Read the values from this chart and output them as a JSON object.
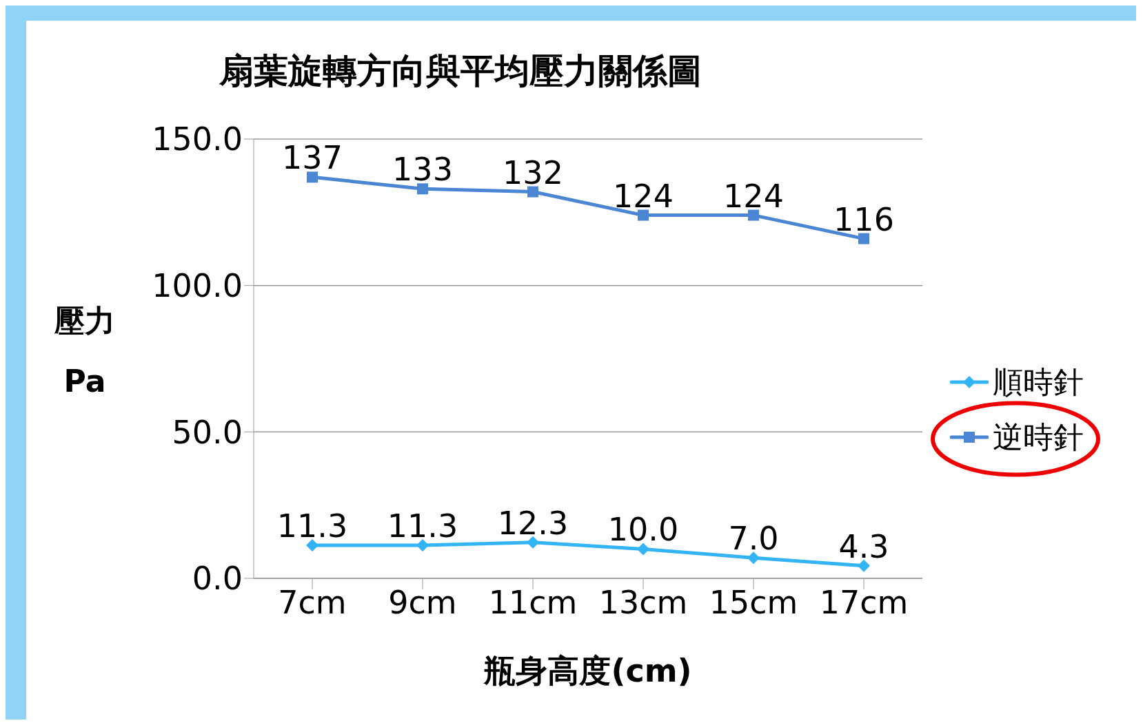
{
  "chart_data": {
    "type": "line",
    "title": "扇葉旋轉方向與平均壓力關係圖",
    "xlabel": "瓶身高度(cm)",
    "ylabel": "壓力\nPa",
    "categories": [
      "7cm",
      "9cm",
      "11cm",
      "13cm",
      "15cm",
      "17cm"
    ],
    "series": [
      {
        "name": "順時針",
        "color": "#33b5f5",
        "marker": "diamond",
        "values": [
          11.3,
          11.3,
          12.3,
          10.0,
          7.0,
          4.3
        ],
        "value_labels": [
          "11.3",
          "11.3",
          "12.3",
          "10.0",
          "7.0",
          "4.3"
        ]
      },
      {
        "name": "逆時針",
        "color": "#4a86d4",
        "marker": "square",
        "values": [
          137,
          133,
          132,
          124,
          124,
          116
        ],
        "value_labels": [
          "137",
          "133",
          "132",
          "124",
          "124",
          "116"
        ]
      }
    ],
    "ylim": [
      0,
      150
    ],
    "yticks": [
      {
        "value": 0,
        "label": "0.0"
      },
      {
        "value": 50,
        "label": "50.0"
      },
      {
        "value": 100,
        "label": "100.0"
      },
      {
        "value": 150,
        "label": "150.0"
      }
    ],
    "grid": "y",
    "legend": "right"
  }
}
